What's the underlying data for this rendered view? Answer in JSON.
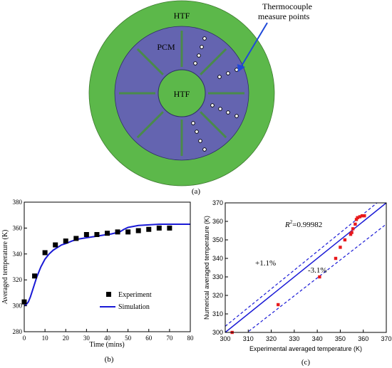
{
  "panel_a": {
    "label": "(a)",
    "htf_outer": "HTF",
    "htf_inner": "HTF",
    "pcm": "PCM",
    "annotation_line1": "Thermocouple",
    "annotation_line2": "measure points",
    "colors": {
      "htf": "#5cb84a",
      "pcm": "#6464b0",
      "arrow": "#1f49d9"
    }
  },
  "chart_data": [
    {
      "id": "b",
      "type": "scatter+line",
      "panel_label": "(b)",
      "xlabel": "Time (mins)",
      "ylabel": "Averaged temperature (K)",
      "xlim": [
        0,
        80
      ],
      "ylim": [
        280,
        380
      ],
      "xticks": [
        0,
        10,
        20,
        30,
        40,
        50,
        60,
        70,
        80
      ],
      "yticks": [
        280,
        300,
        320,
        340,
        360,
        380
      ],
      "legend_position": "bottom-right",
      "series": [
        {
          "name": "Experiment",
          "kind": "scatter",
          "marker": "square",
          "color": "#000000",
          "x": [
            0,
            5,
            10,
            15,
            20,
            25,
            30,
            35,
            40,
            45,
            50,
            55,
            60,
            65,
            70
          ],
          "y": [
            303,
            323,
            341,
            347,
            350,
            352,
            355,
            355,
            356,
            357,
            357,
            358,
            359,
            360,
            360
          ]
        },
        {
          "name": "Simulation",
          "kind": "line",
          "color": "#1a1ad6",
          "x": [
            0,
            1,
            2,
            3,
            4,
            5,
            6,
            8,
            10,
            12,
            14,
            16,
            18,
            20,
            23,
            26,
            30,
            34,
            38,
            42,
            46,
            48,
            50,
            55,
            60,
            65,
            70,
            75,
            80
          ],
          "y": [
            300,
            301,
            303,
            307,
            312,
            317,
            322,
            330,
            336,
            340,
            343,
            345,
            347,
            348,
            350,
            351.5,
            352.5,
            353.5,
            354.5,
            355.5,
            357,
            359,
            360.5,
            362,
            362.5,
            363,
            363,
            363,
            363
          ]
        }
      ]
    },
    {
      "id": "c",
      "type": "scatter",
      "panel_label": "(c)",
      "xlabel": "Experimental averaged temperature (K)",
      "ylabel": "Numerical averaged temperature (K)",
      "xlim": [
        300,
        370
      ],
      "ylim": [
        300,
        370
      ],
      "xticks": [
        300,
        310,
        320,
        330,
        340,
        350,
        360,
        370
      ],
      "yticks": [
        300,
        310,
        320,
        330,
        340,
        350,
        360,
        370
      ],
      "r2_prefix": "R",
      "r2_sup": "2",
      "r2_value": "=0.99982",
      "plus_label": "+1.1%",
      "minus_label": "-3.1%",
      "band_upper": 1.011,
      "band_lower": 0.969,
      "series": [
        {
          "name": "data",
          "color": "#e8191c",
          "x": [
            303,
            323,
            341,
            348,
            350,
            352,
            354.5,
            355,
            355.5,
            356.5,
            357,
            357.5,
            358.5,
            359.5,
            360.5
          ],
          "y": [
            300,
            315,
            330,
            340,
            346,
            350,
            353,
            354,
            356,
            358.5,
            361,
            362,
            362.5,
            363,
            363
          ]
        }
      ]
    }
  ]
}
